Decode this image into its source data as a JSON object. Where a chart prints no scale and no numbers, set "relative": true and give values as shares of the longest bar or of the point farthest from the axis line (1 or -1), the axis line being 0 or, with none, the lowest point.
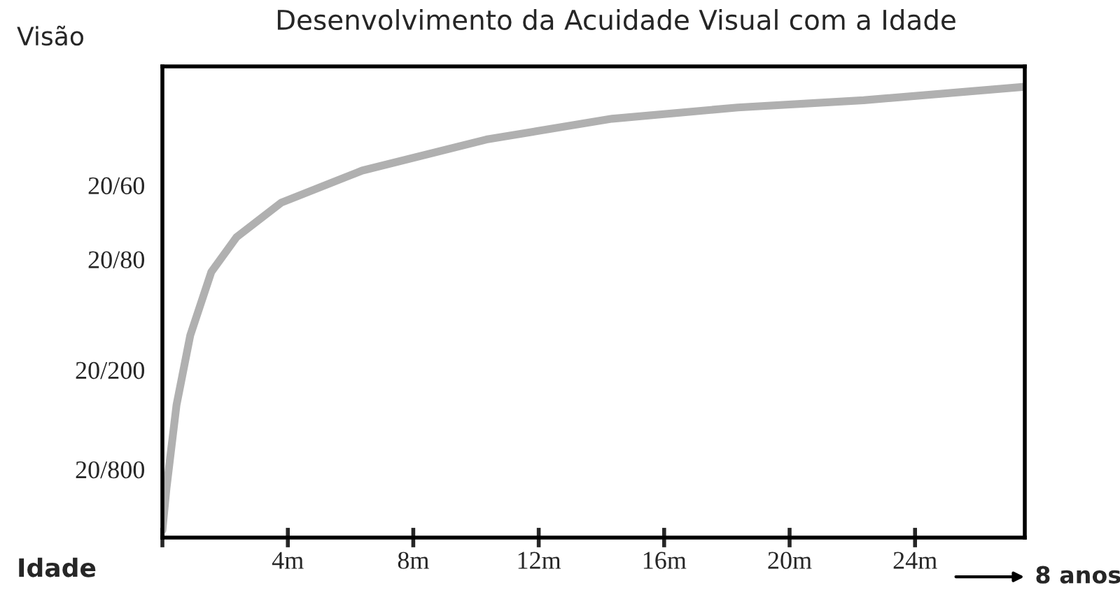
{
  "chart_data": {
    "type": "line",
    "title": "Desenvolvimento da Acuidade Visual com a Idade",
    "xlabel": "Idade",
    "ylabel": "Visão",
    "x": [
      0,
      0.13,
      0.45,
      0.89,
      1.56,
      2.36,
      3.79,
      6.37,
      10.33,
      14.34,
      18.35,
      22.36,
      27.5
    ],
    "series": [
      {
        "color": "#b0b0b0",
        "values": [
          0.016,
          0.109,
          0.294,
          0.449,
          0.589,
          0.666,
          0.743,
          0.814,
          0.883,
          0.929,
          0.954,
          0.97,
          1.0
        ]
      }
    ],
    "relative": true,
    "xlim": [
      0,
      27.5
    ],
    "xticks": [
      {
        "value": 0,
        "label": null
      },
      {
        "value": 4,
        "label": "4m"
      },
      {
        "value": 8,
        "label": "8m"
      },
      {
        "value": 12,
        "label": "12m"
      },
      {
        "value": 16,
        "label": "16m"
      },
      {
        "value": 20,
        "label": "20m"
      },
      {
        "value": 24,
        "label": "24m"
      }
    ],
    "annotations": [
      "20/60",
      "20/80",
      "20/200",
      "20/800",
      "8 anos"
    ],
    "grid": false,
    "legend": false,
    "marker": "none",
    "line_style": "solid"
  }
}
